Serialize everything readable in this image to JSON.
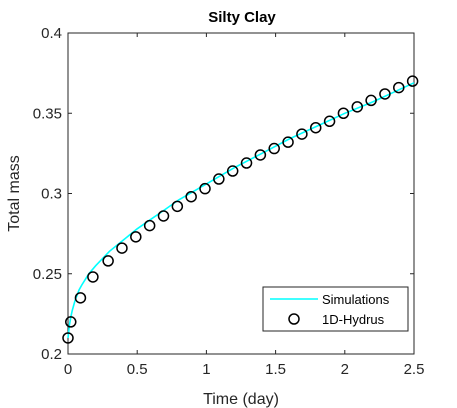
{
  "chart_data": {
    "type": "line",
    "title": "Silty Clay",
    "xlabel": "Time (day)",
    "ylabel": "Total mass",
    "xlim": [
      0,
      2.5
    ],
    "ylim": [
      0.2,
      0.4
    ],
    "xticks": [
      0,
      0.5,
      1,
      1.5,
      2,
      2.5
    ],
    "xtick_labels": [
      "0",
      "0.5",
      "1",
      "1.5",
      "2",
      "2.5"
    ],
    "yticks": [
      0.2,
      0.25,
      0.3,
      0.35,
      0.4
    ],
    "ytick_labels": [
      "0.2",
      "0.25",
      "0.3",
      "0.35",
      "0.4"
    ],
    "grid": false,
    "legend_position": "bottom-right",
    "series": [
      {
        "name": "Simulations",
        "style": "line",
        "color": "#00ffff",
        "x": [
          0,
          0.005,
          0.01,
          0.02,
          0.03,
          0.05,
          0.08,
          0.1,
          0.15,
          0.2,
          0.3,
          0.4,
          0.5,
          0.6,
          0.7,
          0.8,
          0.9,
          1.0,
          1.2,
          1.4,
          1.6,
          1.8,
          2.0,
          2.2,
          2.4,
          2.5
        ],
        "y": [
          0.21,
          0.214,
          0.218,
          0.223,
          0.227,
          0.233,
          0.24,
          0.243,
          0.25,
          0.255,
          0.264,
          0.271,
          0.278,
          0.284,
          0.29,
          0.296,
          0.301,
          0.306,
          0.316,
          0.325,
          0.334,
          0.342,
          0.35,
          0.357,
          0.365,
          0.369
        ]
      },
      {
        "name": "1D-Hydrus",
        "style": "marker",
        "marker": "circle",
        "color": "#000000",
        "x": [
          0,
          0.02,
          0.09,
          0.18,
          0.29,
          0.39,
          0.49,
          0.59,
          0.69,
          0.79,
          0.89,
          0.99,
          1.09,
          1.19,
          1.29,
          1.39,
          1.49,
          1.59,
          1.69,
          1.79,
          1.89,
          1.99,
          2.09,
          2.19,
          2.29,
          2.39,
          2.49
        ],
        "y": [
          0.21,
          0.22,
          0.235,
          0.248,
          0.258,
          0.266,
          0.273,
          0.28,
          0.286,
          0.292,
          0.298,
          0.303,
          0.309,
          0.314,
          0.319,
          0.324,
          0.328,
          0.332,
          0.337,
          0.341,
          0.345,
          0.35,
          0.354,
          0.358,
          0.362,
          0.366,
          0.37
        ]
      }
    ]
  }
}
